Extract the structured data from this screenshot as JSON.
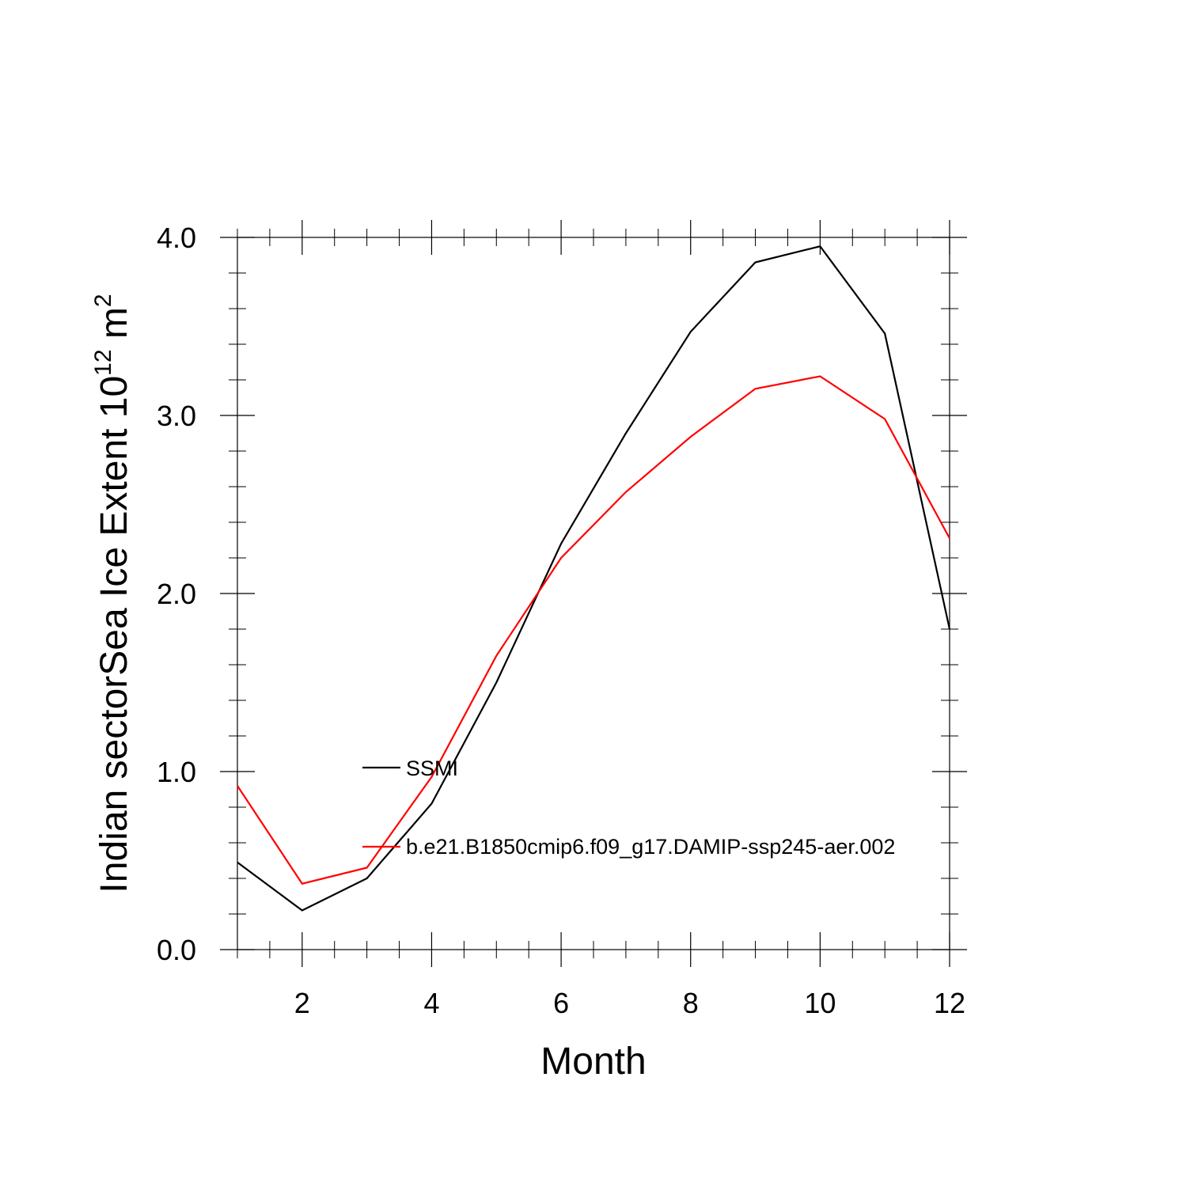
{
  "chart_data": {
    "type": "line",
    "title": "",
    "xlabel": "Month",
    "ylabel": {
      "main": "Indian sectorSea Ice Extent 10",
      "sup1": "12",
      "unit": " m",
      "sup2": "2"
    },
    "xlim": [
      1,
      12
    ],
    "ylim": [
      0,
      4
    ],
    "x": [
      1,
      2,
      3,
      4,
      5,
      6,
      7,
      8,
      9,
      10,
      11,
      12
    ],
    "x_ticks": [
      2,
      4,
      6,
      8,
      10,
      12
    ],
    "x_tick_labels": [
      "2",
      "4",
      "6",
      "8",
      "10",
      "12"
    ],
    "y_ticks": [
      0,
      1,
      2,
      3,
      4
    ],
    "y_tick_labels": [
      "0.0",
      "1.0",
      "2.0",
      "3.0",
      "4.0"
    ],
    "grid": false,
    "series": [
      {
        "name": "SSMI",
        "color": "#000000",
        "values": [
          0.49,
          0.22,
          0.4,
          0.82,
          1.5,
          2.28,
          2.9,
          3.47,
          3.86,
          3.95,
          3.46,
          1.8
        ]
      },
      {
        "name": "b.e21.B1850cmip6.f09_g17.DAMIP-ssp245-aer.002",
        "color": "#ff0000",
        "values": [
          0.92,
          0.37,
          0.46,
          0.97,
          1.65,
          2.2,
          2.57,
          2.88,
          3.15,
          3.22,
          2.98,
          2.31
        ]
      }
    ]
  }
}
